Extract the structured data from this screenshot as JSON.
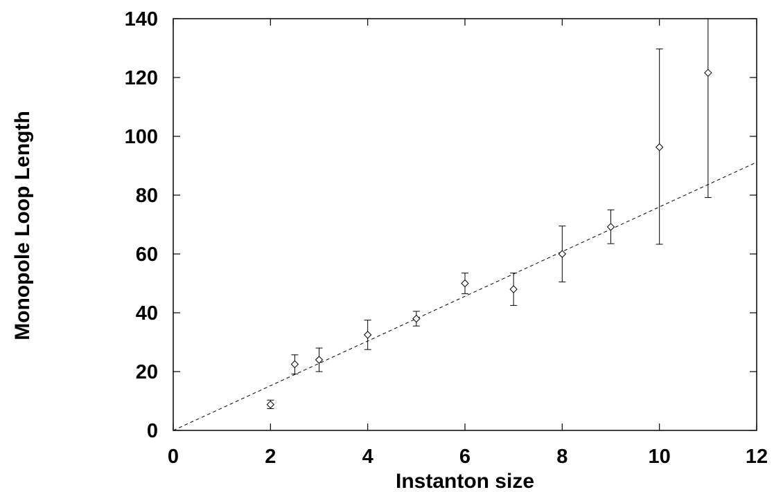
{
  "chart_data": {
    "type": "scatter",
    "title": "",
    "xlabel": "Instanton size",
    "ylabel": "Monopole Loop Length",
    "xlim": [
      0,
      12
    ],
    "ylim": [
      0,
      140
    ],
    "xticks": [
      0,
      2,
      4,
      6,
      8,
      10,
      12
    ],
    "yticks": [
      0,
      20,
      40,
      60,
      80,
      100,
      120,
      140
    ],
    "grid": false,
    "legend": "none",
    "series": [
      {
        "marker": "diamond",
        "color": "#000000",
        "x": [
          2,
          2.5,
          3,
          4,
          5,
          6,
          7,
          8,
          9,
          10,
          11
        ],
        "y": [
          8.8,
          22.5,
          24,
          32.5,
          38,
          50,
          48,
          60,
          69.2,
          96.3,
          121.6
        ],
        "y_err_low": [
          7.4,
          19.2,
          20,
          27.5,
          35.5,
          46.5,
          42.5,
          50.5,
          63.5,
          63.3,
          79.2
        ],
        "y_err_high": [
          10.3,
          25.7,
          28,
          37.5,
          40.5,
          53.5,
          53.5,
          69.5,
          75,
          129.7,
          140
        ]
      }
    ],
    "fit_line": {
      "style": "dashed",
      "color": "#000000",
      "x": [
        0,
        12
      ],
      "y": [
        0,
        91.2
      ]
    }
  }
}
